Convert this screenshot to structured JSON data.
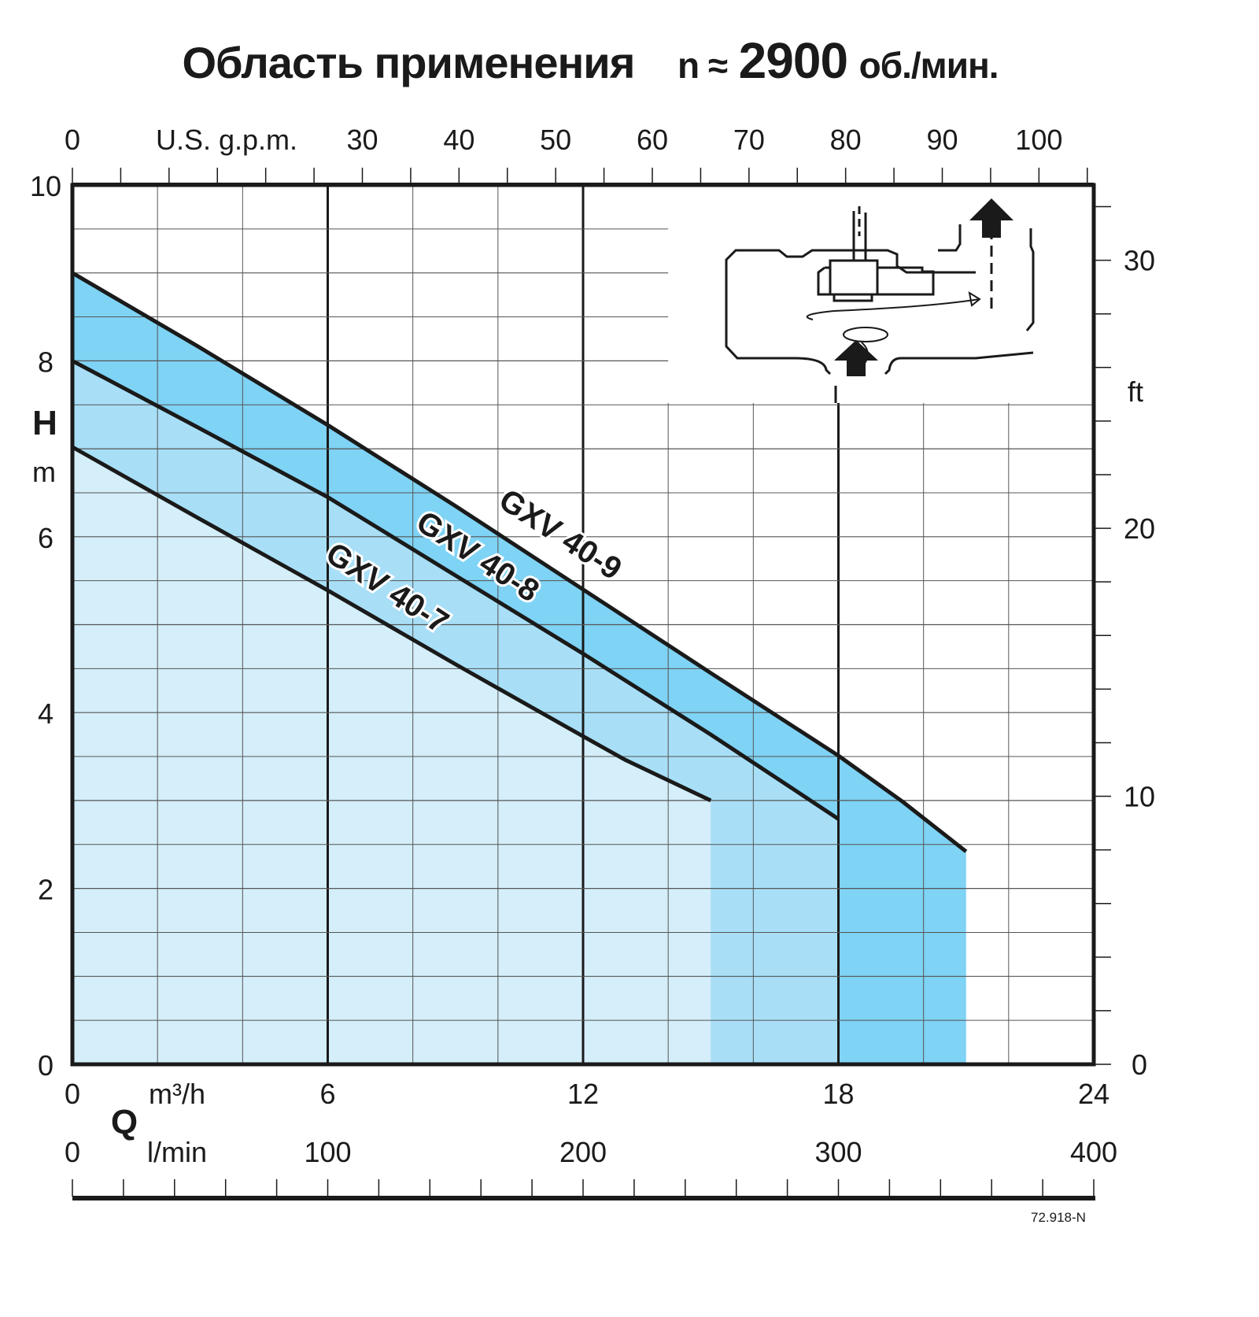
{
  "title": {
    "main": "Область применения",
    "n_label": "n ≈",
    "rpm": "2900",
    "unit": "об./мин."
  },
  "code": "72.918-N",
  "colors": {
    "fill_40_7": "#d4eefa",
    "fill_40_8": "#a8dff7",
    "fill_40_9": "#7fd3f4",
    "line": "#1a1a1a"
  },
  "chart_data": {
    "type": "line",
    "title": "Область применения n ≈ 2900 об./мин.",
    "xlabel": "Q",
    "ylabel": "H",
    "x_unit": "m³/h",
    "y_unit": "m",
    "xlim": [
      0,
      24
    ],
    "ylim": [
      0,
      10
    ],
    "grid": true,
    "x_ticks": [
      "0",
      "6",
      "12",
      "18",
      "24"
    ],
    "y_ticks": [
      "0",
      "2",
      "4",
      "6",
      "8",
      "10"
    ],
    "secondary_axes": {
      "top": {
        "label": "U.S. g.p.m.",
        "ticks": [
          "0",
          "30",
          "40",
          "50",
          "60",
          "70",
          "80",
          "90",
          "100"
        ]
      },
      "bottom": {
        "label": "l/min",
        "ticks": [
          "0",
          "100",
          "200",
          "300",
          "400"
        ]
      },
      "right": {
        "label": "ft",
        "ticks": [
          "0",
          "10",
          "20",
          "30"
        ]
      }
    },
    "series": [
      {
        "name": "GXV 40-9",
        "x": [
          0,
          3,
          6,
          9,
          12,
          15,
          18,
          19.5,
          21
        ],
        "y": [
          9.0,
          8.15,
          7.27,
          6.35,
          5.4,
          4.45,
          3.51,
          2.99,
          2.42
        ]
      },
      {
        "name": "GXV 40-8",
        "x": [
          0,
          3,
          6,
          9,
          12,
          15,
          18
        ],
        "y": [
          8.0,
          7.23,
          6.45,
          5.56,
          4.67,
          3.75,
          2.79
        ]
      },
      {
        "name": "GXV 40-7",
        "x": [
          0,
          3,
          6,
          9,
          12,
          13,
          15
        ],
        "y": [
          7.02,
          6.2,
          5.39,
          4.55,
          3.73,
          3.46,
          3.0
        ]
      }
    ]
  }
}
